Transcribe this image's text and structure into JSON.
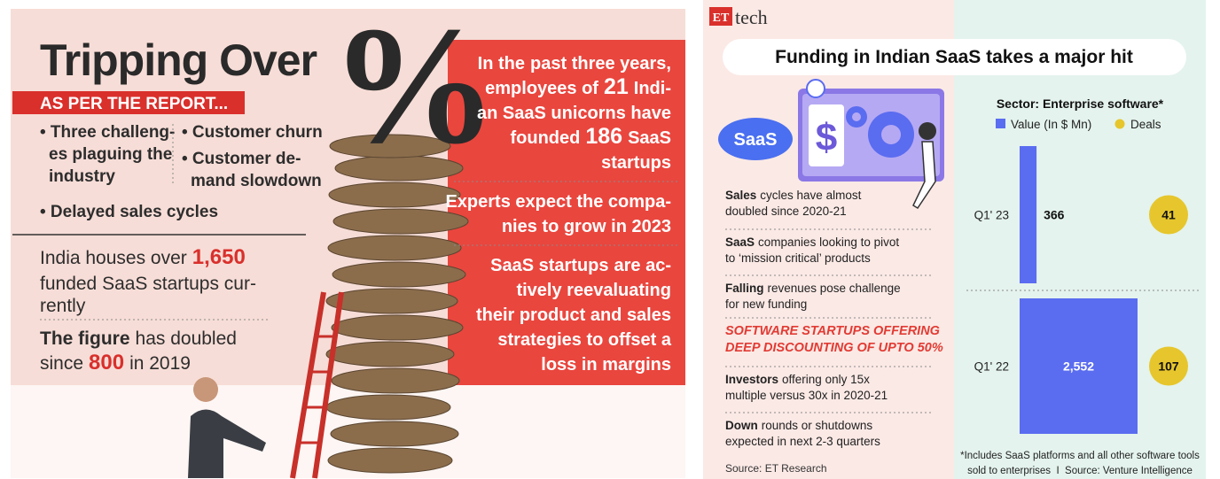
{
  "left": {
    "title": "Tripping Over",
    "symbol": "%",
    "banner": "AS PER THE REPORT...",
    "challenges": [
      [
        "• Three challeng-",
        "es plaguing the",
        "industry"
      ],
      [
        "• Customer churn"
      ],
      [
        "• Customer de-",
        "mand slowdown"
      ],
      [
        "• Delayed sales cycles"
      ]
    ],
    "houses": [
      [
        "India houses over",
        "1,650"
      ],
      [
        "funded SaaS startups cur-"
      ],
      [
        "rently"
      ]
    ],
    "doubled": [
      [
        "The figure",
        "has doubled"
      ],
      [
        "since",
        "800",
        "in 2019"
      ]
    ],
    "facts": [
      [
        [
          "In the",
          "past three years,"
        ],
        [
          "employees of",
          "21",
          "Indi-"
        ],
        [
          "an SaaS unicorns have"
        ],
        [
          "founded",
          "186",
          "SaaS"
        ],
        [
          "startups"
        ]
      ],
      [
        [
          "Experts expect the compa-"
        ],
        [
          "nies to grow in 2023"
        ]
      ],
      [
        [
          "SaaS startups",
          "are ac-"
        ],
        [
          "tively reevaluating"
        ],
        [
          "their product and sales"
        ],
        [
          "strategies to offset a"
        ],
        [
          "loss in margins"
        ]
      ]
    ]
  },
  "right": {
    "logo": {
      "brand": "ET",
      "name": "tech"
    },
    "title": "Funding in Indian SaaS takes a major hit",
    "badge": "SaaS",
    "points": [
      {
        "lead": "Sales",
        "rest": [
          "cycles have almost",
          "doubled since 2020-21"
        ]
      },
      {
        "lead": "SaaS",
        "rest": [
          "companies looking to pivot",
          "to ‘mission critical’ products"
        ]
      },
      {
        "lead": "Falling",
        "rest": [
          "revenues pose challenge",
          "for new funding"
        ]
      },
      {
        "highlight": [
          "SOFTWARE STARTUPS OFFERING",
          "DEEP DISCOUNTING OF UPTO 50%"
        ]
      },
      {
        "lead": "Investors",
        "rest": [
          "offering only 15x",
          "multiple versus 30x in 2020-21"
        ]
      },
      {
        "lead": "Down",
        "rest": [
          "rounds or shutdowns",
          "expected in next 2-3 quarters"
        ]
      }
    ],
    "source": "Source: ET Research",
    "chart": {
      "title": "Sector: Enterprise software*",
      "categories": [
        "Q1' 23",
        "Q1' 22"
      ],
      "value_series": {
        "name": "Value (In $ Mn)",
        "color": "#5a6cf0",
        "values": [
          366,
          2552
        ],
        "value_labels": [
          "366",
          "2,552"
        ]
      },
      "deals_series": {
        "name": "Deals",
        "color": "#e6c62c",
        "values": [
          41,
          107
        ]
      },
      "footnote": [
        "*Includes SaaS platforms and all other software tools",
        "sold to enterprises  I  Source: Venture Intelligence"
      ]
    }
  }
}
